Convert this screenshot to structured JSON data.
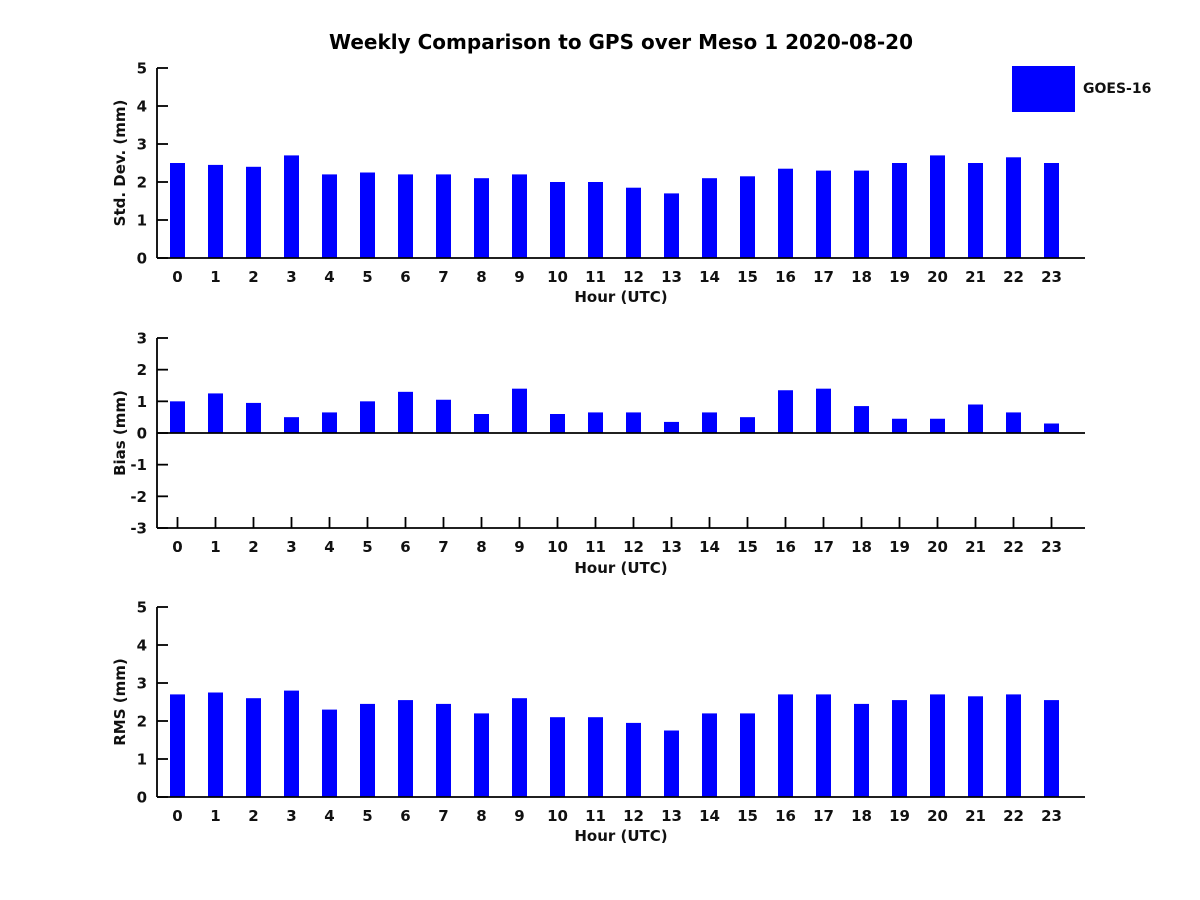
{
  "title": "Weekly Comparison to GPS over Meso 1 2020-08-20",
  "legend": {
    "label": "GOES-16",
    "swatch_color": "#0000FF"
  },
  "colors": {
    "bar": "#0000FF",
    "axis": "#000000",
    "text": "#111111",
    "background": "#FFFFFF"
  },
  "chart_data": [
    {
      "type": "bar",
      "panel": "std-dev",
      "series_name": "GOES-16",
      "ylabel": "Std. Dev. (mm)",
      "xlabel": "Hour (UTC)",
      "ylim": [
        0,
        5
      ],
      "yticks": [
        0,
        1,
        2,
        3,
        4,
        5
      ],
      "grid": false,
      "categories": [
        "0",
        "1",
        "2",
        "3",
        "4",
        "5",
        "6",
        "7",
        "8",
        "9",
        "10",
        "11",
        "12",
        "13",
        "14",
        "15",
        "16",
        "17",
        "18",
        "19",
        "20",
        "21",
        "22",
        "23"
      ],
      "values": [
        2.5,
        2.45,
        2.4,
        2.7,
        2.2,
        2.25,
        2.2,
        2.2,
        2.1,
        2.2,
        2.0,
        2.0,
        1.85,
        1.7,
        2.1,
        2.15,
        2.35,
        2.3,
        2.3,
        2.5,
        2.7,
        2.5,
        2.65,
        2.5
      ]
    },
    {
      "type": "bar",
      "panel": "bias",
      "series_name": "GOES-16",
      "ylabel": "Bias (mm)",
      "xlabel": "Hour (UTC)",
      "ylim": [
        -3,
        3
      ],
      "yticks": [
        -3,
        -2,
        -1,
        0,
        1,
        2,
        3
      ],
      "grid": false,
      "categories": [
        "0",
        "1",
        "2",
        "3",
        "4",
        "5",
        "6",
        "7",
        "8",
        "9",
        "10",
        "11",
        "12",
        "13",
        "14",
        "15",
        "16",
        "17",
        "18",
        "19",
        "20",
        "21",
        "22",
        "23"
      ],
      "values": [
        1.0,
        1.25,
        0.95,
        0.5,
        0.65,
        1.0,
        1.3,
        1.05,
        0.6,
        1.4,
        0.6,
        0.65,
        0.65,
        0.35,
        0.65,
        0.5,
        1.35,
        1.4,
        0.85,
        0.45,
        0.45,
        0.9,
        0.65,
        0.3
      ]
    },
    {
      "type": "bar",
      "panel": "rms",
      "series_name": "GOES-16",
      "ylabel": "RMS (mm)",
      "xlabel": "Hour (UTC)",
      "ylim": [
        0,
        5
      ],
      "yticks": [
        0,
        1,
        2,
        3,
        4,
        5
      ],
      "grid": false,
      "categories": [
        "0",
        "1",
        "2",
        "3",
        "4",
        "5",
        "6",
        "7",
        "8",
        "9",
        "10",
        "11",
        "12",
        "13",
        "14",
        "15",
        "16",
        "17",
        "18",
        "19",
        "20",
        "21",
        "22",
        "23"
      ],
      "values": [
        2.7,
        2.75,
        2.6,
        2.8,
        2.3,
        2.45,
        2.55,
        2.45,
        2.2,
        2.6,
        2.1,
        2.1,
        1.95,
        1.75,
        2.2,
        2.2,
        2.7,
        2.7,
        2.45,
        2.55,
        2.7,
        2.65,
        2.7,
        2.55
      ]
    }
  ]
}
